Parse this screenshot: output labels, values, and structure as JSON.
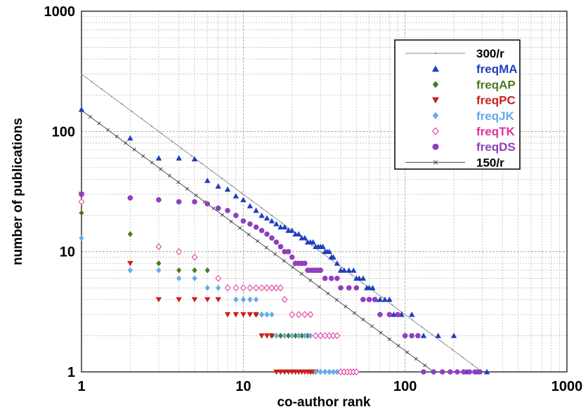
{
  "chart_data": {
    "type": "scatter",
    "xlabel": "co-author rank",
    "ylabel": "number of publications",
    "xscale": "log",
    "yscale": "log",
    "xlim": [
      1,
      1000
    ],
    "ylim": [
      1,
      1000
    ],
    "grid": true,
    "x_ticks": [
      {
        "value": 1,
        "label": "1"
      },
      {
        "value": 10,
        "label": "10"
      },
      {
        "value": 100,
        "label": "100"
      },
      {
        "value": 1000,
        "label": "1000"
      }
    ],
    "y_ticks": [
      {
        "value": 1,
        "label": "1"
      },
      {
        "value": 10,
        "label": "10"
      },
      {
        "value": 100,
        "label": "100"
      },
      {
        "value": 1000,
        "label": "1000"
      }
    ],
    "legend_position": "top-right",
    "series": [
      {
        "name": "300/r",
        "kind": "line",
        "color": "#888888",
        "marker": "dot",
        "formula": "300/r",
        "x_range": [
          1,
          300
        ]
      },
      {
        "name": "freqMA",
        "kind": "points",
        "color": "#1f3fbf",
        "marker": "triangle-up",
        "points": [
          [
            1,
            152
          ],
          [
            2,
            88
          ],
          [
            3,
            60
          ],
          [
            4,
            60
          ],
          [
            5,
            59
          ],
          [
            6,
            39
          ],
          [
            7,
            35
          ],
          [
            8,
            33
          ],
          [
            9,
            29
          ],
          [
            10,
            27
          ],
          [
            11,
            24
          ],
          [
            12,
            22
          ],
          [
            13,
            20
          ],
          [
            14,
            19
          ],
          [
            15,
            18
          ],
          [
            16,
            17
          ],
          [
            17,
            16
          ],
          [
            18,
            16
          ],
          [
            19,
            15
          ],
          [
            20,
            15
          ],
          [
            21,
            14
          ],
          [
            22,
            14
          ],
          [
            23,
            13
          ],
          [
            24,
            13
          ],
          [
            25,
            12
          ],
          [
            26,
            12
          ],
          [
            27,
            12
          ],
          [
            28,
            11
          ],
          [
            29,
            11
          ],
          [
            30,
            11
          ],
          [
            31,
            11
          ],
          [
            32,
            10
          ],
          [
            33,
            10
          ],
          [
            34,
            10
          ],
          [
            35,
            9
          ],
          [
            36,
            9
          ],
          [
            38,
            8
          ],
          [
            40,
            7
          ],
          [
            42,
            7
          ],
          [
            45,
            7
          ],
          [
            48,
            7
          ],
          [
            50,
            6
          ],
          [
            52,
            6
          ],
          [
            55,
            6
          ],
          [
            58,
            5
          ],
          [
            60,
            5
          ],
          [
            63,
            5
          ],
          [
            66,
            4
          ],
          [
            70,
            4
          ],
          [
            75,
            4
          ],
          [
            80,
            4
          ],
          [
            85,
            3
          ],
          [
            95,
            3
          ],
          [
            110,
            3
          ],
          [
            130,
            2
          ],
          [
            160,
            2
          ],
          [
            200,
            2
          ],
          [
            240,
            1
          ],
          [
            280,
            1
          ],
          [
            320,
            1
          ]
        ]
      },
      {
        "name": "freqAP",
        "kind": "points",
        "color": "#4a7a1f",
        "marker": "diamond",
        "points": [
          [
            1,
            21
          ],
          [
            2,
            14
          ],
          [
            3,
            8
          ],
          [
            4,
            7
          ],
          [
            5,
            7
          ],
          [
            6,
            7
          ],
          [
            7,
            6
          ],
          [
            8,
            5
          ],
          [
            9,
            4
          ],
          [
            10,
            4
          ],
          [
            11,
            4
          ],
          [
            12,
            3
          ],
          [
            13,
            3
          ],
          [
            14,
            3
          ],
          [
            15,
            2
          ],
          [
            16,
            2
          ],
          [
            17,
            2
          ],
          [
            18,
            2
          ],
          [
            19,
            2
          ],
          [
            20,
            2
          ],
          [
            21,
            2
          ],
          [
            22,
            2
          ],
          [
            23,
            2
          ],
          [
            24,
            2
          ],
          [
            25,
            2
          ],
          [
            26,
            1
          ],
          [
            28,
            1
          ],
          [
            30,
            1
          ],
          [
            32,
            1
          ],
          [
            34,
            1
          ],
          [
            36,
            1
          ],
          [
            38,
            1
          ],
          [
            40,
            1
          ],
          [
            42,
            1
          ]
        ]
      },
      {
        "name": "freqPC",
        "kind": "points",
        "color": "#cc1f1f",
        "marker": "triangle-down",
        "points": [
          [
            1,
            30
          ],
          [
            2,
            8
          ],
          [
            3,
            4
          ],
          [
            4,
            4
          ],
          [
            5,
            4
          ],
          [
            6,
            4
          ],
          [
            7,
            4
          ],
          [
            8,
            3
          ],
          [
            9,
            3
          ],
          [
            10,
            3
          ],
          [
            11,
            3
          ],
          [
            12,
            3
          ],
          [
            13,
            2
          ],
          [
            14,
            2
          ],
          [
            15,
            2
          ],
          [
            16,
            1
          ],
          [
            17,
            1
          ],
          [
            18,
            1
          ],
          [
            19,
            1
          ],
          [
            20,
            1
          ],
          [
            21,
            1
          ],
          [
            22,
            1
          ],
          [
            23,
            1
          ],
          [
            24,
            1
          ],
          [
            25,
            1
          ],
          [
            26,
            1
          ],
          [
            27,
            1
          ],
          [
            28,
            1
          ]
        ]
      },
      {
        "name": "freqJK",
        "kind": "points",
        "color": "#66aaee",
        "marker": "diamond",
        "points": [
          [
            1,
            13
          ],
          [
            2,
            7
          ],
          [
            3,
            7
          ],
          [
            4,
            6
          ],
          [
            5,
            6
          ],
          [
            6,
            5
          ],
          [
            7,
            5
          ],
          [
            8,
            5
          ],
          [
            9,
            4
          ],
          [
            10,
            4
          ],
          [
            11,
            4
          ],
          [
            12,
            4
          ],
          [
            13,
            3
          ],
          [
            14,
            3
          ],
          [
            15,
            3
          ],
          [
            16,
            2
          ],
          [
            18,
            2
          ],
          [
            20,
            2
          ],
          [
            22,
            2
          ],
          [
            24,
            2
          ],
          [
            26,
            2
          ],
          [
            28,
            1
          ],
          [
            30,
            1
          ],
          [
            32,
            1
          ],
          [
            34,
            1
          ],
          [
            36,
            1
          ],
          [
            38,
            1
          ],
          [
            40,
            1
          ]
        ]
      },
      {
        "name": "freqTK",
        "kind": "points",
        "color": "#dd3399",
        "marker": "diamond-open",
        "points": [
          [
            1,
            26
          ],
          [
            3,
            11
          ],
          [
            4,
            10
          ],
          [
            5,
            9
          ],
          [
            7,
            6
          ],
          [
            8,
            5
          ],
          [
            9,
            5
          ],
          [
            10,
            5
          ],
          [
            11,
            5
          ],
          [
            12,
            5
          ],
          [
            13,
            5
          ],
          [
            14,
            5
          ],
          [
            15,
            5
          ],
          [
            16,
            5
          ],
          [
            17,
            5
          ],
          [
            18,
            4
          ],
          [
            20,
            3
          ],
          [
            22,
            3
          ],
          [
            24,
            3
          ],
          [
            26,
            3
          ],
          [
            28,
            2
          ],
          [
            30,
            2
          ],
          [
            32,
            2
          ],
          [
            34,
            2
          ],
          [
            36,
            2
          ],
          [
            38,
            2
          ],
          [
            40,
            1
          ],
          [
            42,
            1
          ],
          [
            44,
            1
          ],
          [
            46,
            1
          ],
          [
            48,
            1
          ],
          [
            50,
            1
          ]
        ]
      },
      {
        "name": "freqDS",
        "kind": "points",
        "color": "#8e3fbf",
        "marker": "circle",
        "points": [
          [
            1,
            30
          ],
          [
            2,
            28
          ],
          [
            3,
            27
          ],
          [
            4,
            26
          ],
          [
            5,
            26
          ],
          [
            6,
            25
          ],
          [
            7,
            23
          ],
          [
            8,
            22
          ],
          [
            9,
            20
          ],
          [
            10,
            18
          ],
          [
            11,
            17
          ],
          [
            12,
            16
          ],
          [
            13,
            15
          ],
          [
            14,
            14
          ],
          [
            15,
            13
          ],
          [
            16,
            12
          ],
          [
            17,
            11
          ],
          [
            18,
            10
          ],
          [
            19,
            10
          ],
          [
            20,
            9
          ],
          [
            21,
            8
          ],
          [
            22,
            8
          ],
          [
            23,
            8
          ],
          [
            24,
            8
          ],
          [
            25,
            7
          ],
          [
            26,
            7
          ],
          [
            27,
            7
          ],
          [
            28,
            7
          ],
          [
            29,
            7
          ],
          [
            30,
            7
          ],
          [
            32,
            6
          ],
          [
            35,
            6
          ],
          [
            38,
            6
          ],
          [
            40,
            5
          ],
          [
            45,
            5
          ],
          [
            50,
            5
          ],
          [
            55,
            4
          ],
          [
            60,
            4
          ],
          [
            65,
            4
          ],
          [
            70,
            3
          ],
          [
            80,
            3
          ],
          [
            90,
            3
          ],
          [
            100,
            2
          ],
          [
            110,
            2
          ],
          [
            120,
            2
          ],
          [
            130,
            1
          ],
          [
            150,
            1
          ],
          [
            170,
            1
          ],
          [
            190,
            1
          ],
          [
            210,
            1
          ],
          [
            230,
            1
          ],
          [
            250,
            1
          ],
          [
            270,
            1
          ],
          [
            290,
            1
          ]
        ]
      },
      {
        "name": "150/r",
        "kind": "line",
        "color": "#444444",
        "marker": "x",
        "formula": "150/r",
        "x_range": [
          1,
          150
        ]
      }
    ]
  }
}
